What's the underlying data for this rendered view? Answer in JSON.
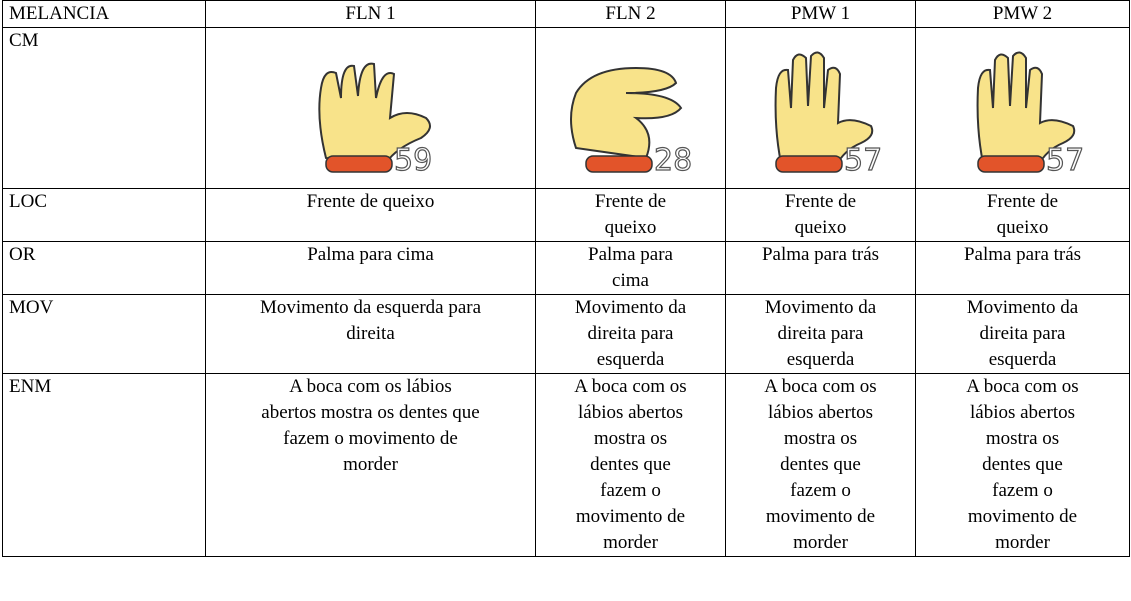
{
  "table": {
    "header": [
      "MELANCIA",
      "FLN 1",
      "FLN 2",
      "PMW 1",
      "PMW 2"
    ],
    "cm": {
      "label": "CM",
      "codes": [
        "59",
        "28",
        "57",
        "57"
      ]
    },
    "rows": [
      {
        "label": "LOC",
        "cells": [
          [
            "Frente de queixo"
          ],
          [
            "Frente de",
            "queixo"
          ],
          [
            "Frente de",
            "queixo"
          ],
          [
            "Frente de",
            "queixo"
          ]
        ]
      },
      {
        "label": "OR",
        "cells": [
          [
            "Palma para cima"
          ],
          [
            "Palma para",
            "cima"
          ],
          [
            "Palma para trás"
          ],
          [
            "Palma para trás"
          ]
        ]
      },
      {
        "label": "MOV",
        "cells": [
          [
            "Movimento da esquerda para",
            "direita"
          ],
          [
            "Movimento da",
            "direita para",
            "esquerda"
          ],
          [
            "Movimento da",
            "direita para",
            "esquerda"
          ],
          [
            "Movimento da",
            "direita para",
            "esquerda"
          ]
        ]
      },
      {
        "label": "ENM",
        "cells": [
          [
            "A boca com os lábios",
            "abertos mostra os dentes que",
            "fazem o movimento de",
            "morder"
          ],
          [
            "A boca com os",
            "lábios abertos",
            "mostra os",
            "dentes que",
            "fazem o",
            "movimento de",
            "morder"
          ],
          [
            "A boca com os",
            "lábios abertos",
            "mostra os",
            "dentes que",
            "fazem o",
            "movimento de",
            "morder"
          ],
          [
            "A boca com os",
            "lábios abertos",
            "mostra os",
            "dentes que",
            "fazem o",
            "movimento de",
            "morder"
          ]
        ]
      }
    ]
  }
}
